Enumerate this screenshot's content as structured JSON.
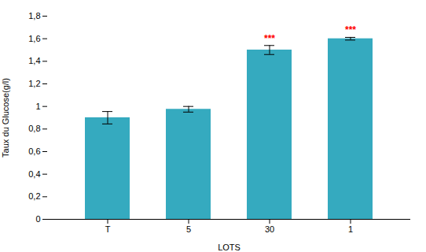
{
  "chart_data": {
    "type": "bar",
    "categories": [
      "T",
      "5",
      "30",
      "1"
    ],
    "values": [
      0.9,
      0.975,
      1.5,
      1.6
    ],
    "errors": [
      0.055,
      0.025,
      0.04,
      0.012
    ],
    "color": "#35AABF",
    "annotations": [
      {
        "category": "30",
        "text": "***",
        "color": "red"
      },
      {
        "category": "1",
        "text": "***",
        "color": "red"
      }
    ],
    "ylabel": "Taux du Glucose(g/l)",
    "xlabel": "LOTS",
    "ylim": [
      0,
      1.8
    ],
    "yticks": [
      0,
      {
        "value": 0.2,
        "label": "0,2"
      },
      {
        "value": 0.4,
        "label": "0,4"
      },
      {
        "value": 0.6,
        "label": "0,6"
      },
      {
        "value": 0.8,
        "label": "0,8"
      },
      1,
      {
        "value": 1.2,
        "label": "1,2"
      },
      {
        "value": 1.4,
        "label": "1,4"
      },
      {
        "value": 1.6,
        "label": "1,6"
      },
      {
        "value": 1.8,
        "label": "1,8"
      }
    ],
    "grid": false
  }
}
